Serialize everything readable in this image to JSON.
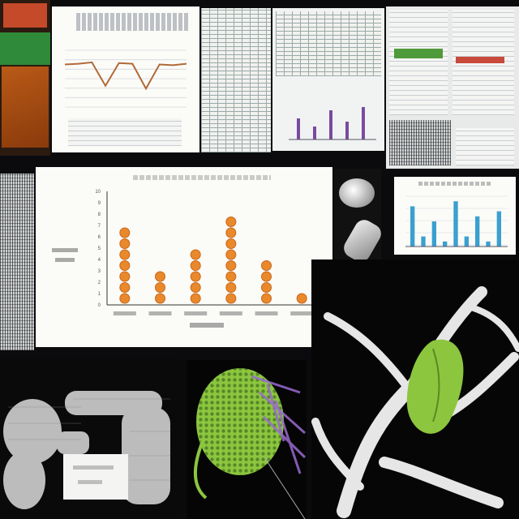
{
  "collage": {
    "tiles": [
      {
        "name": "book-cover-tile"
      },
      {
        "name": "line-chart-tile"
      },
      {
        "name": "spreadsheet-tile"
      },
      {
        "name": "dashboard-tile"
      },
      {
        "name": "report-tile"
      },
      {
        "name": "dot-chart-tile"
      },
      {
        "name": "blue-bar-chart-tile"
      },
      {
        "name": "coral-scan-tile"
      },
      {
        "name": "green-cell-tile"
      },
      {
        "name": "branch-structure-tile"
      }
    ]
  },
  "dot_chart": {
    "title": "",
    "xlabel": "",
    "ylabel": "",
    "ticks": [
      "0",
      "1",
      "2",
      "3",
      "4",
      "5",
      "6",
      "7",
      "8",
      "9",
      "10"
    ]
  },
  "colors": {
    "dot": "#e9892c",
    "dot_outline": "#c9671a",
    "blue_bar": "#3aa0d0",
    "line": "#b06a37",
    "leaf_green": "#8cc63e",
    "accent_purple": "#6d3fb6"
  },
  "chart_data": [
    {
      "type": "scatter",
      "categories": [
        "",
        "",
        "",
        "",
        "",
        ""
      ],
      "series": [
        {
          "values": [
            7,
            3,
            5,
            8,
            4,
            1
          ]
        }
      ],
      "ylim": [
        0,
        10
      ],
      "grid": false,
      "legend": "none"
    },
    {
      "type": "line",
      "x": [
        1,
        2,
        3,
        4,
        5,
        6,
        7,
        8,
        9,
        10
      ],
      "series": [
        {
          "values": [
            6.0,
            6.1,
            6.3,
            3.0,
            6.2,
            6.1,
            2.6,
            6.0,
            5.9,
            6.1
          ]
        }
      ],
      "grid": true
    },
    {
      "type": "bar",
      "categories": [
        "",
        "",
        "",
        "",
        "",
        "",
        "",
        "",
        ""
      ],
      "series": [
        {
          "values": [
            8,
            2,
            5,
            1,
            9,
            2,
            6,
            1,
            7
          ]
        }
      ],
      "grid": true
    }
  ]
}
